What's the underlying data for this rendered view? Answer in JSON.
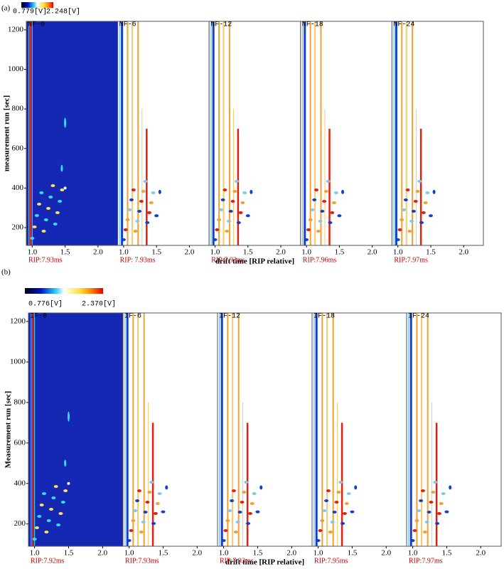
{
  "chart_data": [
    {
      "type": "heatmap",
      "panel_label": "(a)",
      "colorbar": {
        "min_label": "0.779[V]",
        "max_label": "2.248[V]"
      },
      "y_label": "measurement run [sec]",
      "x_label": "drift time [RIP relative]",
      "ylim": [
        110,
        1243
      ],
      "yticks": [
        200,
        400,
        600,
        800,
        1000,
        1200
      ],
      "xlim": [
        0.91,
        2.3
      ],
      "xticks": [
        {
          "value": 1,
          "label": "1.0"
        },
        1.5,
        {
          "value": 2,
          "label": "2.0"
        }
      ],
      "plots": [
        {
          "name": "NF-0",
          "rip": "RIP:7.93ms"
        },
        {
          "name": "NF-6",
          "rip": "RIP: 7.93ms"
        },
        {
          "name": "NF-12",
          "rip": "RIP:7.93ms"
        },
        {
          "name": "NF-18",
          "rip": "RIP:7.96ms"
        },
        {
          "name": "NF-24",
          "rip": "RIP:7.97ms"
        }
      ]
    },
    {
      "type": "heatmap",
      "panel_label": "(b)",
      "colorbar": {
        "min_label": "0.776[V]",
        "max_label": "2.370[V]"
      },
      "y_label": "Measurement run [sec]",
      "x_label": "drift time [RIP relative]",
      "ylim": [
        90,
        1242
      ],
      "yticks": [
        200,
        400,
        600,
        800,
        1000,
        1200
      ],
      "xlim": [
        0.91,
        2.3
      ],
      "xticks": [
        {
          "value": 1,
          "label": "1.0"
        },
        1.5,
        {
          "value": 2,
          "label": "2.0"
        }
      ],
      "plots": [
        {
          "name": "IF-0",
          "rip": "RIP:7.92ms"
        },
        {
          "name": "IF-6",
          "rip": "RIP:7.93ms"
        },
        {
          "name": "IF-12",
          "rip": "RIP:7.93ms"
        },
        {
          "name": "IF-18",
          "rip": "RIP:7.95ms"
        },
        {
          "name": "IF-24",
          "rip": "RIP:7.97ms"
        }
      ]
    }
  ]
}
